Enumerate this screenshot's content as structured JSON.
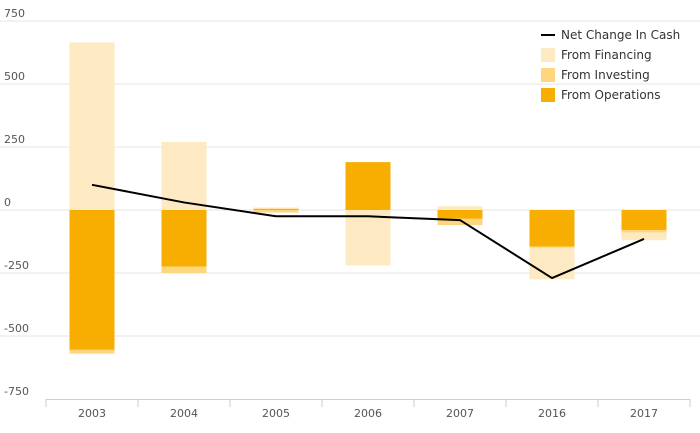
{
  "chart_data": {
    "type": "bar",
    "stacked": true,
    "categories": [
      "2003",
      "2004",
      "2005",
      "2006",
      "2007",
      "2016",
      "2017"
    ],
    "ylim": [
      -750,
      750
    ],
    "yticks": [
      "750",
      "500",
      "250",
      "0",
      "-250",
      "-500",
      "-750"
    ],
    "ytick_values": [
      750,
      500,
      250,
      0,
      -250,
      -500,
      -750
    ],
    "grid": true,
    "legend_position": "top-right",
    "series": [
      {
        "name": "From Operations",
        "kind": "bar",
        "color": "#f7ae00",
        "values": [
          -555,
          -225,
          5,
          190,
          -35,
          -145,
          -80
        ]
      },
      {
        "name": "From Investing",
        "kind": "bar",
        "color": "#fdd67f",
        "values": [
          -15,
          -25,
          -10,
          0,
          -25,
          -5,
          -10
        ]
      },
      {
        "name": "From Financing",
        "kind": "bar",
        "color": "#feeac2",
        "values": [
          665,
          270,
          5,
          -220,
          15,
          -125,
          -30
        ]
      },
      {
        "name": "Net Change In Cash",
        "kind": "line",
        "color": "#000000",
        "values": [
          100,
          30,
          -25,
          -25,
          -40,
          -270,
          -115
        ]
      }
    ],
    "legend": [
      {
        "name": "Net Change In Cash",
        "swatch": "line",
        "color": "#000000"
      },
      {
        "name": "From Financing",
        "swatch": "box",
        "color": "#feeac2"
      },
      {
        "name": "From Investing",
        "swatch": "box",
        "color": "#fdd67f"
      },
      {
        "name": "From Operations",
        "swatch": "box",
        "color": "#f7ae00"
      }
    ]
  }
}
